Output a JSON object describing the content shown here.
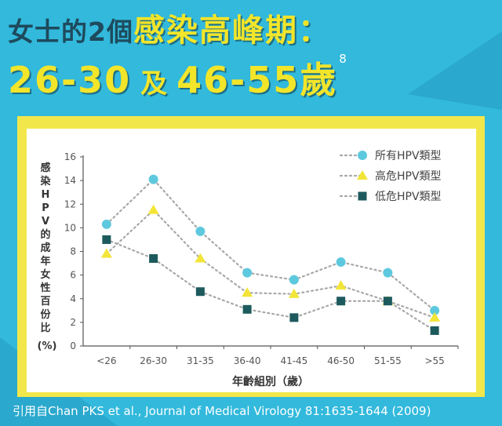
{
  "headline": {
    "line1_dark": "女士的2個",
    "line1_highlight": "感染高峰期：",
    "line2_first": "26-30",
    "line2_connector": "及",
    "line2_second": "46-55歲",
    "footnote": "8"
  },
  "citation": "引用自Chan PKS et al., Journal of Medical Virology 81:1635-1644 (2009)",
  "colors": {
    "background": "#32b9dc",
    "panel": "#f2e74a",
    "series_all": "#5ec9de",
    "series_high": "#f2e538",
    "series_low": "#1d5a5d"
  },
  "chart_data": {
    "type": "line",
    "categories": [
      "<26",
      "26-30",
      "31-35",
      "36-40",
      "41-45",
      "46-50",
      "51-55",
      ">55"
    ],
    "xlabel": "年齡組別（歲）",
    "ylabel": "感染HPV的成年女性百份比",
    "ylabel_unit": "(%)",
    "ylim": [
      0,
      16
    ],
    "yticks": [
      "0",
      "2",
      "4",
      "6",
      "8",
      "10",
      "12",
      "14",
      "16"
    ],
    "grid": false,
    "legend_position": "top-right",
    "series": [
      {
        "name": "所有HPV類型",
        "marker": "circle",
        "color": "#5ec9de",
        "values": [
          10.3,
          14.1,
          9.7,
          6.2,
          5.6,
          7.1,
          6.2,
          3.0
        ]
      },
      {
        "name": "高危HPV類型",
        "marker": "triangle",
        "color": "#f2e538",
        "values": [
          7.8,
          11.5,
          7.4,
          4.5,
          4.4,
          5.1,
          3.8,
          2.4
        ]
      },
      {
        "name": "低危HPV類型",
        "marker": "square",
        "color": "#1d5a5d",
        "values": [
          9.0,
          7.4,
          4.6,
          3.1,
          2.4,
          3.8,
          3.8,
          1.3
        ]
      }
    ]
  }
}
